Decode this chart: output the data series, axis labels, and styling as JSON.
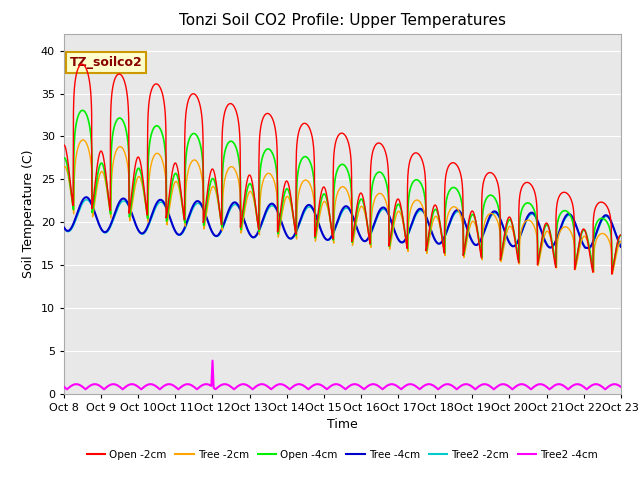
{
  "title": "Tonzi Soil CO2 Profile: Upper Temperatures",
  "xlabel": "Time",
  "ylabel": "Soil Temperature (C)",
  "annotation": "TZ_soilco2",
  "ylim": [
    0,
    42
  ],
  "xlim": [
    0,
    15
  ],
  "yticks": [
    0,
    5,
    10,
    15,
    20,
    25,
    30,
    35,
    40
  ],
  "xtick_labels": [
    "Oct 8",
    "Oct 9",
    "Oct 10",
    "Oct 11",
    "Oct 12",
    "Oct 13",
    "Oct 14",
    "Oct 15",
    "Oct 16",
    "Oct 17",
    "Oct 18",
    "Oct 19",
    "Oct 20",
    "Oct 21",
    "Oct 22",
    "Oct 23"
  ],
  "series": {
    "open_2cm": {
      "color": "#ff0000",
      "label": "Open -2cm"
    },
    "tree_2cm": {
      "color": "#ffa500",
      "label": "Tree -2cm"
    },
    "open_4cm": {
      "color": "#00ee00",
      "label": "Open -4cm"
    },
    "tree_4cm": {
      "color": "#0000cc",
      "label": "Tree -4cm"
    },
    "tree2_2cm": {
      "color": "#00cccc",
      "label": "Tree2 -2cm"
    },
    "tree2_4cm": {
      "color": "#ff00ff",
      "label": "Tree2 -4cm"
    }
  },
  "background_color": "#e8e8e8",
  "fig_background": "#ffffff",
  "grid_color": "#ffffff",
  "title_fontsize": 11,
  "axis_label_fontsize": 9,
  "tick_fontsize": 8
}
